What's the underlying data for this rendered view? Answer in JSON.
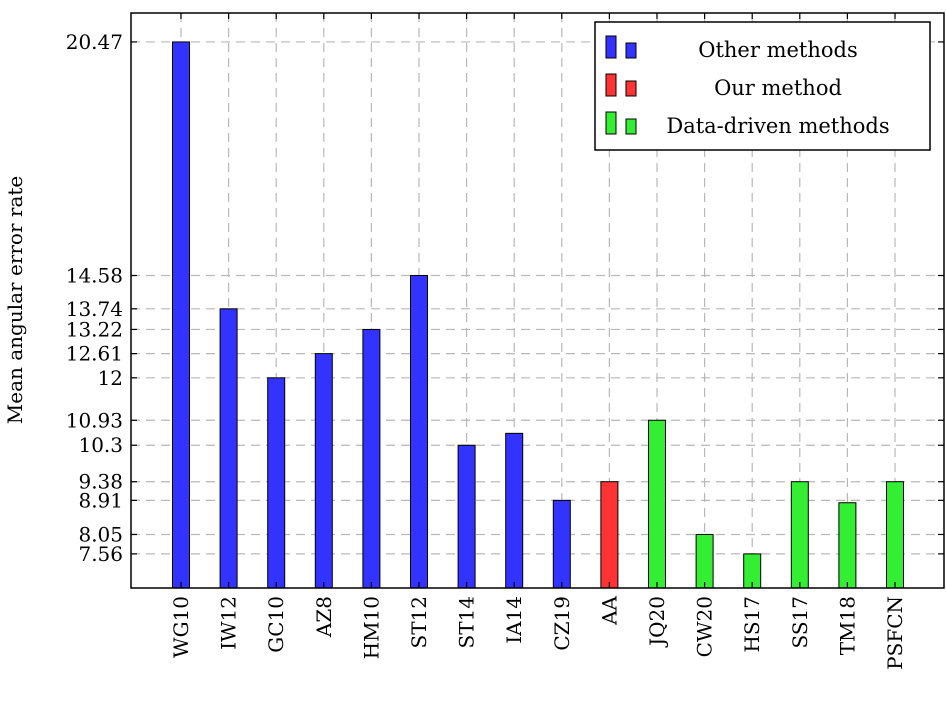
{
  "chart_data": {
    "type": "bar",
    "ylabel": "Mean angular error rate",
    "xlabel": "",
    "ylim": [
      6.7,
      21.2
    ],
    "yticks": [
      7.56,
      8.05,
      8.91,
      9.38,
      10.3,
      10.93,
      12,
      12.61,
      13.22,
      13.74,
      14.58,
      20.47
    ],
    "categories": [
      "WG10",
      "IW12",
      "GC10",
      "AZ8",
      "HM10",
      "ST12",
      "ST14",
      "IA14",
      "CZ19",
      "AA",
      "JQ20",
      "CW20",
      "HS17",
      "SS17",
      "TM18",
      "PSFCN"
    ],
    "grid": true,
    "legend_position": "top-right",
    "series": [
      {
        "name": "Other methods",
        "color": "#3333ff",
        "values": [
          20.47,
          13.74,
          12,
          12.61,
          13.22,
          14.58,
          10.3,
          10.6,
          8.91,
          null,
          null,
          null,
          null,
          null,
          null,
          null
        ]
      },
      {
        "name": "Our method",
        "color": "#ff3333",
        "values": [
          null,
          null,
          null,
          null,
          null,
          null,
          null,
          null,
          null,
          9.38,
          null,
          null,
          null,
          null,
          null,
          null
        ]
      },
      {
        "name": "Data-driven methods",
        "color": "#33ee33",
        "values": [
          null,
          null,
          null,
          null,
          null,
          null,
          null,
          null,
          null,
          null,
          10.93,
          8.05,
          7.56,
          9.38,
          8.85,
          9.38
        ]
      }
    ]
  }
}
